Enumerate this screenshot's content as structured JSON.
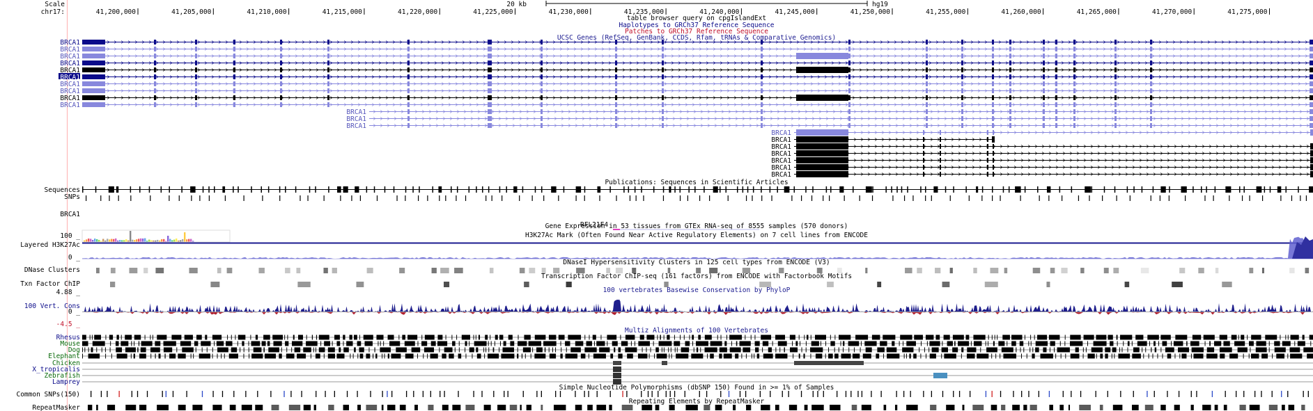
{
  "ruler": {
    "scale_label": "Scale",
    "chrom_label": "chr17:",
    "scale_bar": "20 kb",
    "assembly": "hg19",
    "ticks": [
      "41,200,000",
      "41,205,000",
      "41,210,000",
      "41,215,000",
      "41,220,000",
      "41,225,000",
      "41,230,000",
      "41,235,000",
      "41,240,000",
      "41,245,000",
      "41,250,000",
      "41,255,000",
      "41,260,000",
      "41,265,000",
      "41,270,000",
      "41,275,000"
    ]
  },
  "track_titles": {
    "cpg": "table browser query on cpgIslandExt",
    "haplotypes": "Haplotypes to GRCh37 Reference Sequence",
    "patches": "Patches to GRCh37 Reference Sequence",
    "ucsc_genes": "UCSC Genes (RefSeq, GenBank, CCDS, Rfam, tRNAs & Comparative Genomics)",
    "publications": "Publications: Sequences in Scientific Articles",
    "gtex": "Gene Expression in 53 tissues from GTEx RNA-seq of 8555 samples (570 donors)",
    "h3k27ac": "H3K27Ac Mark (Often Found Near Active Regulatory Elements) on 7 cell lines from ENCODE",
    "dnase": "DNaseI Hypersensitivity Clusters in 125 cell types from ENCODE (V3)",
    "tfbs": "Transcription Factor ChIP-seq (161 factors) from ENCODE with Factorbook Motifs",
    "cons": "100 vertebrates Basewise Conservation by PhyloP",
    "multiz": "Multiz Alignments of 100 Vertebrates",
    "snp": "Simple Nucleotide Polymorphisms (dbSNP 150) Found in >= 1% of Samples",
    "rmsk": "Repeating Elements by RepeatMasker"
  },
  "gene_label": "BRCA1",
  "gtex_label": "RFL21F4",
  "left_labels": {
    "sequences": "Sequences",
    "snps": "SNPs",
    "gtex": "BRCA1",
    "h3k_max": "100 _",
    "layered": "Layered H3K27Ac",
    "h3k_min": "0 _",
    "dnase": "DNase Clusters",
    "txn": "Txn Factor ChIP",
    "cons_max": "4.88 _",
    "cons": "100 Vert. Cons",
    "cons_zero": "0 _",
    "cons_min": "-4.5 _",
    "common_snps": "Common SNPs(150)",
    "repeatmasker": "RepeatMasker"
  },
  "species": [
    "Rhesus",
    "Mouse",
    "Dog",
    "Elephant",
    "Chicken",
    "X_tropicalis",
    "Zebrafish",
    "Lamprey"
  ],
  "colors": {
    "gene_blue": "#0b0b8a",
    "gene_light": "#8888dd",
    "h3k27ac": "#6060d0",
    "conservation": "#1e1e8c",
    "snp_red": "#d02020",
    "species_green": "#0a6a0a",
    "species_blue": "#0b0b8a",
    "highlight_line": "#ff9090"
  }
}
